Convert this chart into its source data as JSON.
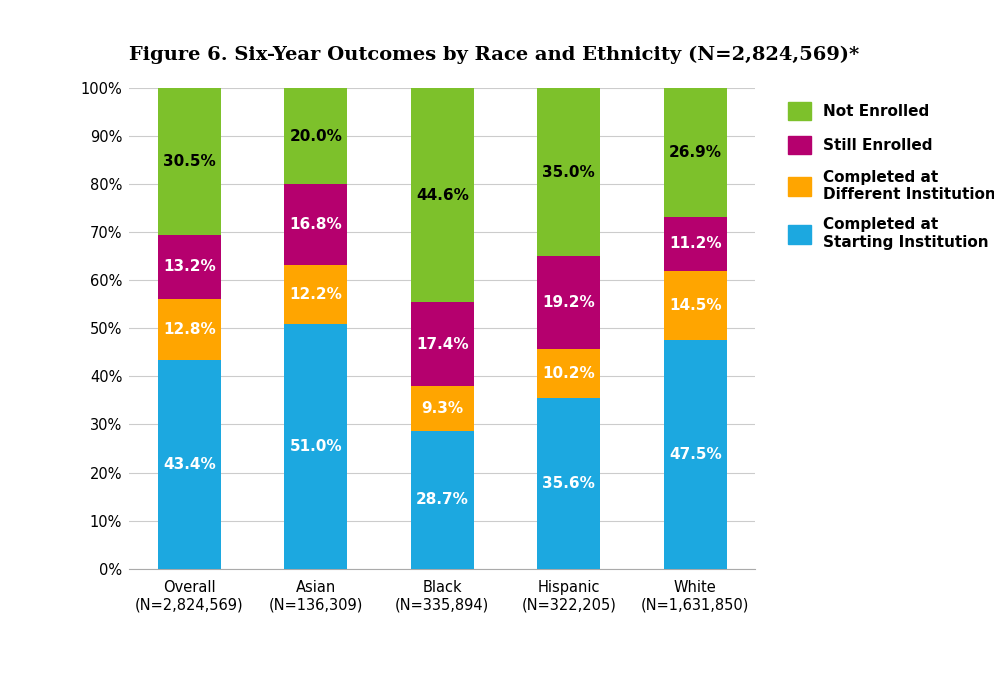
{
  "title": "Figure 6. Six-Year Outcomes by Race and Ethnicity (N=2,824,569)*",
  "categories": [
    "Overall\n(N=2,824,569)",
    "Asian\n(N=136,309)",
    "Black\n(N=335,894)",
    "Hispanic\n(N=322,205)",
    "White\n(N=1,631,850)"
  ],
  "series": {
    "Completed at Starting Institution": {
      "values": [
        43.4,
        51.0,
        28.7,
        35.6,
        47.5
      ],
      "color": "#1CA8E0"
    },
    "Completed at Different Institution": {
      "values": [
        12.8,
        12.2,
        9.3,
        10.2,
        14.5
      ],
      "color": "#FFA500"
    },
    "Still Enrolled": {
      "values": [
        13.2,
        16.8,
        17.4,
        19.2,
        11.2
      ],
      "color": "#B5006E"
    },
    "Not Enrolled": {
      "values": [
        30.5,
        20.0,
        44.6,
        35.0,
        26.9
      ],
      "color": "#7DC12B"
    }
  },
  "series_order": [
    "Completed at Starting Institution",
    "Completed at Different Institution",
    "Still Enrolled",
    "Not Enrolled"
  ],
  "legend_order": [
    {
      "label": "Not Enrolled",
      "color": "#7DC12B"
    },
    {
      "label": "Still Enrolled",
      "color": "#B5006E"
    },
    {
      "label": "Completed at\nDifferent Institution",
      "color": "#FFA500"
    },
    {
      "label": "Completed at\nStarting Institution",
      "color": "#1CA8E0"
    }
  ],
  "ylim": [
    0,
    100
  ],
  "yticks": [
    0,
    10,
    20,
    30,
    40,
    50,
    60,
    70,
    80,
    90,
    100
  ],
  "ytick_labels": [
    "0%",
    "10%",
    "20%",
    "30%",
    "40%",
    "50%",
    "60%",
    "70%",
    "80%",
    "90%",
    "100%"
  ],
  "bar_width": 0.5,
  "label_fontsize": 11,
  "title_fontsize": 14,
  "tick_fontsize": 10.5,
  "legend_fontsize": 11,
  "background_color": "#FFFFFF",
  "grid_color": "#CCCCCC",
  "label_color_dark": "#000000",
  "label_color_light": "#FFFFFF"
}
